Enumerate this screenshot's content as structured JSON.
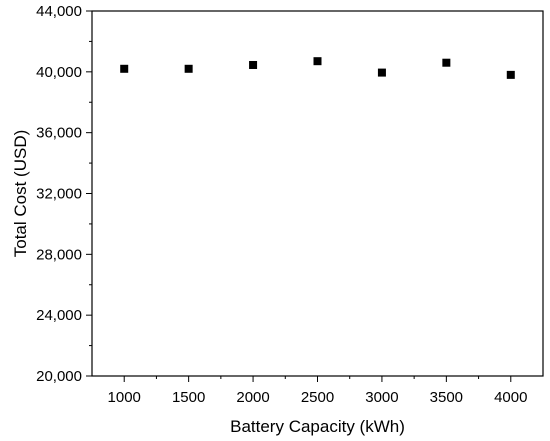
{
  "chart_data": {
    "type": "scatter",
    "title": "",
    "xlabel": "Battery Capacity (kWh)",
    "ylabel": "Total Cost (USD)",
    "x": [
      1000,
      1500,
      2000,
      2500,
      3000,
      3500,
      4000
    ],
    "y": [
      40200,
      40200,
      40450,
      40700,
      39950,
      40600,
      39800
    ],
    "xlim": [
      750,
      4250
    ],
    "ylim": [
      20000,
      44000
    ],
    "x_ticks": [
      1000,
      1500,
      2000,
      2500,
      3000,
      3500,
      4000
    ],
    "x_tick_labels": [
      "1000",
      "1500",
      "2000",
      "2500",
      "3000",
      "3500",
      "4000"
    ],
    "y_ticks": [
      20000,
      24000,
      28000,
      32000,
      36000,
      40000,
      44000
    ],
    "y_tick_labels": [
      "20,000",
      "24,000",
      "28,000",
      "32,000",
      "36,000",
      "40,000",
      "44,000"
    ],
    "marker": "square",
    "marker_color": "#000000",
    "grid": false,
    "legend": "none"
  }
}
